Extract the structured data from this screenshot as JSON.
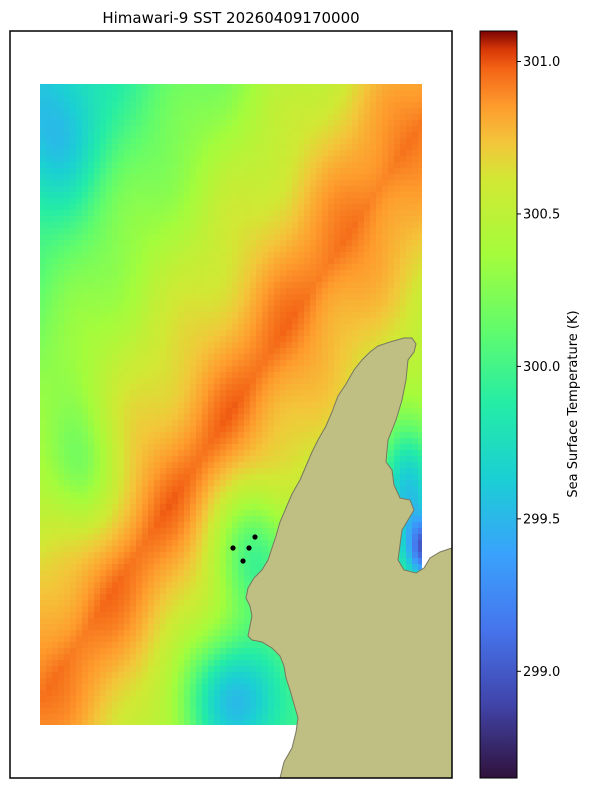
{
  "chart_data": {
    "type": "heatmap",
    "title": "Himawari-9 SST 20260409170000",
    "colorbar": {
      "label": "Sea Surface Temperature (K)",
      "range": [
        298.65,
        301.1
      ],
      "ticks": [
        299.0,
        299.5,
        300.0,
        300.5,
        301.0
      ],
      "tick_labels": [
        "299.0",
        "299.5",
        "300.0",
        "300.5",
        "301.0"
      ],
      "colormap": "turbo"
    },
    "field_summary": {
      "min": 298.65,
      "max": 301.1,
      "warm_band": "SW–NE diagonal band of ~300.8–301.0 K through the upper-right of the domain",
      "cool_patches": "~299.0–299.5 K pockets along the coastline and near the bottom centre",
      "land_color": "#bfbf84"
    },
    "markers": {
      "count": 4,
      "color": "#000000"
    },
    "grid": false,
    "axes": {
      "xlabel": "",
      "ylabel": "",
      "ticks_shown": false
    }
  }
}
